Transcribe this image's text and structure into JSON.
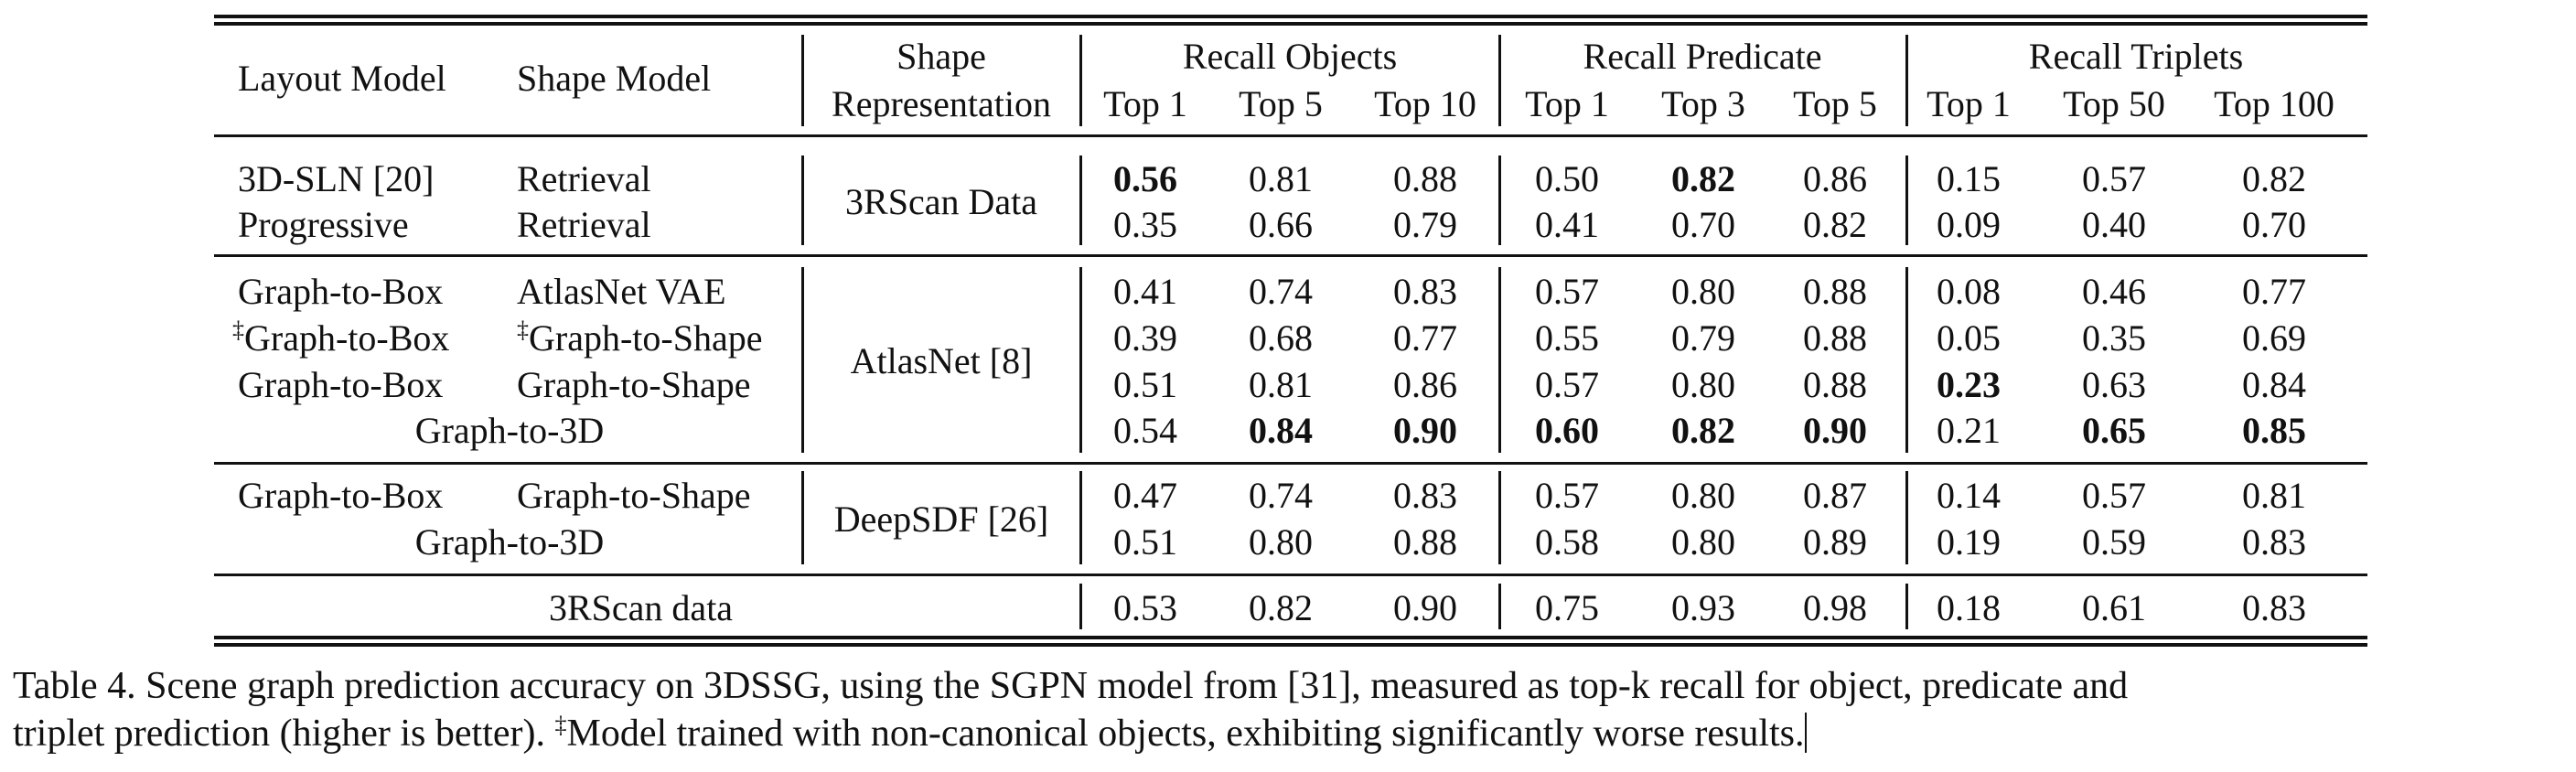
{
  "table": {
    "headers": {
      "layout_model": "Layout Model",
      "shape_model": "Shape Model",
      "shape_rep_1": "Shape",
      "shape_rep_2": "Representation",
      "recall_objects": "Recall Objects",
      "recall_predicate": "Recall Predicate",
      "recall_triplets": "Recall Triplets",
      "obj_cols": [
        "Top 1",
        "Top 5",
        "Top 10"
      ],
      "pred_cols": [
        "Top 1",
        "Top 3",
        "Top 5"
      ],
      "trip_cols": [
        "Top 1",
        "Top 50",
        "Top 100"
      ]
    },
    "groups": [
      {
        "representation": "3RScan Data",
        "rows": [
          {
            "layout": "3D-SLN [20]",
            "shape": "Retrieval",
            "values": [
              "0.56",
              "0.81",
              "0.88",
              "0.50",
              "0.82",
              "0.86",
              "0.15",
              "0.57",
              "0.82"
            ]
          },
          {
            "layout": "Progressive",
            "shape": "Retrieval",
            "values": [
              "0.35",
              "0.66",
              "0.79",
              "0.41",
              "0.70",
              "0.82",
              "0.09",
              "0.40",
              "0.70"
            ]
          }
        ]
      },
      {
        "representation": "AtlasNet [8]",
        "rows": [
          {
            "layout": "Graph-to-Box",
            "shape": "AtlasNet VAE",
            "values": [
              "0.41",
              "0.74",
              "0.83",
              "0.57",
              "0.80",
              "0.88",
              "0.08",
              "0.46",
              "0.77"
            ]
          },
          {
            "layout_mark": "‡",
            "layout": "Graph-to-Box",
            "shape_mark": "‡",
            "shape": "Graph-to-Shape",
            "values": [
              "0.39",
              "0.68",
              "0.77",
              "0.55",
              "0.79",
              "0.88",
              "0.05",
              "0.35",
              "0.69"
            ]
          },
          {
            "layout": "Graph-to-Box",
            "shape": "Graph-to-Shape",
            "values": [
              "0.51",
              "0.81",
              "0.86",
              "0.57",
              "0.80",
              "0.88",
              "0.23",
              "0.63",
              "0.84"
            ]
          },
          {
            "combined": "Graph-to-3D",
            "values": [
              "0.54",
              "0.84",
              "0.90",
              "0.60",
              "0.82",
              "0.90",
              "0.21",
              "0.65",
              "0.85"
            ]
          }
        ]
      },
      {
        "representation": "DeepSDF [26]",
        "rows": [
          {
            "layout": "Graph-to-Box",
            "shape": "Graph-to-Shape",
            "values": [
              "0.47",
              "0.74",
              "0.83",
              "0.57",
              "0.80",
              "0.87",
              "0.14",
              "0.57",
              "0.81"
            ]
          },
          {
            "combined": "Graph-to-3D",
            "values": [
              "0.51",
              "0.80",
              "0.88",
              "0.58",
              "0.80",
              "0.89",
              "0.19",
              "0.59",
              "0.83"
            ]
          }
        ]
      }
    ],
    "reference": {
      "label": "3RScan data",
      "values": [
        "0.53",
        "0.82",
        "0.90",
        "0.75",
        "0.93",
        "0.98",
        "0.18",
        "0.61",
        "0.83"
      ]
    }
  },
  "caption": {
    "line1": "Table 4. Scene graph prediction accuracy on 3DSSG, using the SGPN model from [31], measured as top-k recall for object, predicate and",
    "line2_before": "triplet prediction (higher is better). ",
    "line2_mark": "‡",
    "line2_after": "Model trained with non-canonical objects, exhibiting significantly worse results."
  }
}
